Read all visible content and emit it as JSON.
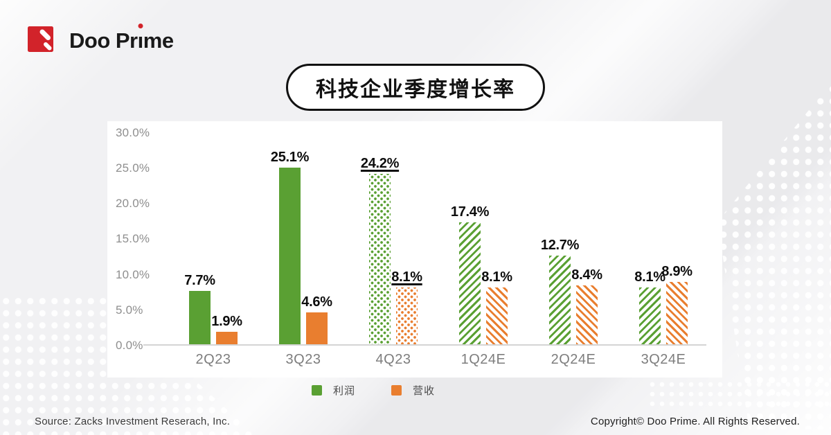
{
  "logo": {
    "part1": "Doo Pr",
    "dotless_i": "ı",
    "part2": "me",
    "brand_red": "#d2232a"
  },
  "chart_data": {
    "type": "bar",
    "title": "科技企业季度增长率",
    "categories": [
      "2Q23",
      "3Q23",
      "4Q23",
      "1Q24E",
      "2Q24E",
      "3Q24E"
    ],
    "series": [
      {
        "name": "利润",
        "key": "profit",
        "color": "#5aa033",
        "values": [
          7.7,
          25.1,
          24.2,
          17.4,
          12.7,
          8.1
        ]
      },
      {
        "name": "营收",
        "key": "revenue",
        "color": "#e97e2f",
        "values": [
          1.9,
          4.6,
          8.1,
          8.1,
          8.4,
          8.9
        ]
      }
    ],
    "bar_styles": [
      "solid",
      "solid",
      "dots",
      "stripes",
      "stripes",
      "stripes"
    ],
    "underlined_categories": [
      "4Q23"
    ],
    "value_suffix": "%",
    "xlabel": "",
    "ylabel": "",
    "ylim": [
      0,
      30
    ],
    "yticks": [
      "30.0%",
      "25.0%",
      "20.0%",
      "15.0%",
      "10.0%",
      "5.0%",
      "0.0%"
    ],
    "grid": false,
    "legend_position": "bottom"
  },
  "footer": {
    "source": "Source: Zacks Investment Reserach, Inc.",
    "copyright": "Copyright© Doo Prime. All Rights Reserved."
  }
}
